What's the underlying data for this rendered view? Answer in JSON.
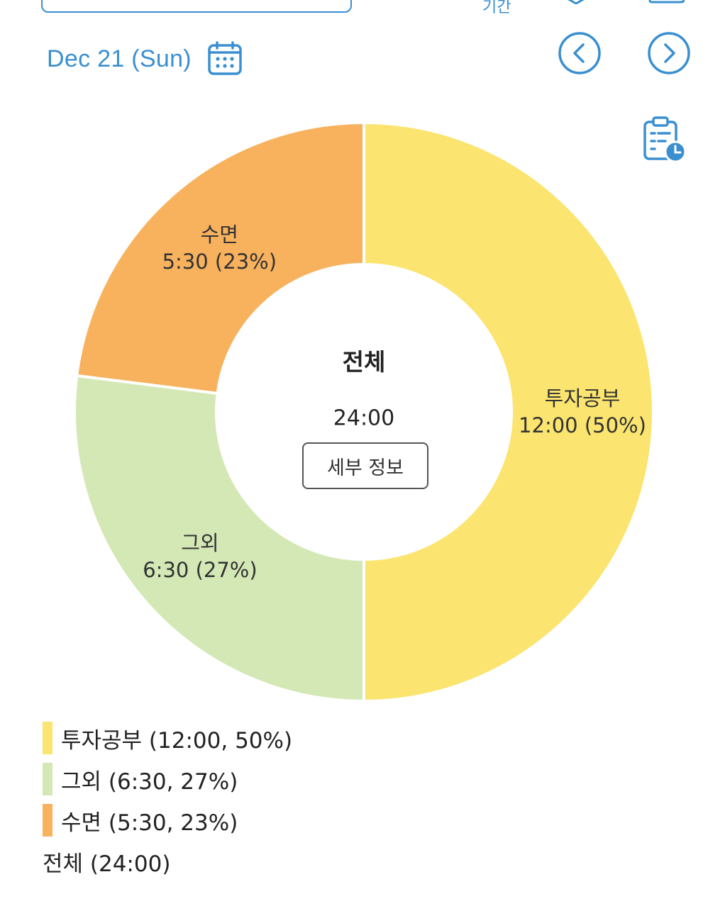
{
  "header": {
    "top_label": "기간",
    "date_label": "Dec 21 (Sun)"
  },
  "icons": {
    "calendar": "calendar-icon",
    "prev": "chevron-left-circle-icon",
    "next": "chevron-right-circle-icon",
    "clipboard": "clipboard-clock-icon"
  },
  "colors": {
    "accent": "#3a8fd0"
  },
  "chart_data": {
    "type": "pie",
    "variant": "donut",
    "center_title": "전체",
    "center_total": "24:00",
    "slices": [
      {
        "name": "투자공부",
        "time": "12:00",
        "percent": 50,
        "color": "#fbe46f",
        "label": "투자공부",
        "value_label": "12:00 (50%)",
        "legend": "투자공부 (12:00, 50%)"
      },
      {
        "name": "그외",
        "time": "6:30",
        "percent": 27,
        "color": "#d4e8b6",
        "label": "그외",
        "value_label": "6:30 (27%)",
        "legend": "그외 (6:30, 27%)"
      },
      {
        "name": "수면",
        "time": "5:30",
        "percent": 23,
        "color": "#f8b25e",
        "label": "수면",
        "value_label": "5:30 (23%)",
        "legend": "수면 (5:30, 23%)"
      }
    ],
    "legend_total": "전체 (24:00)"
  },
  "detail_button_label": "세부 정보"
}
